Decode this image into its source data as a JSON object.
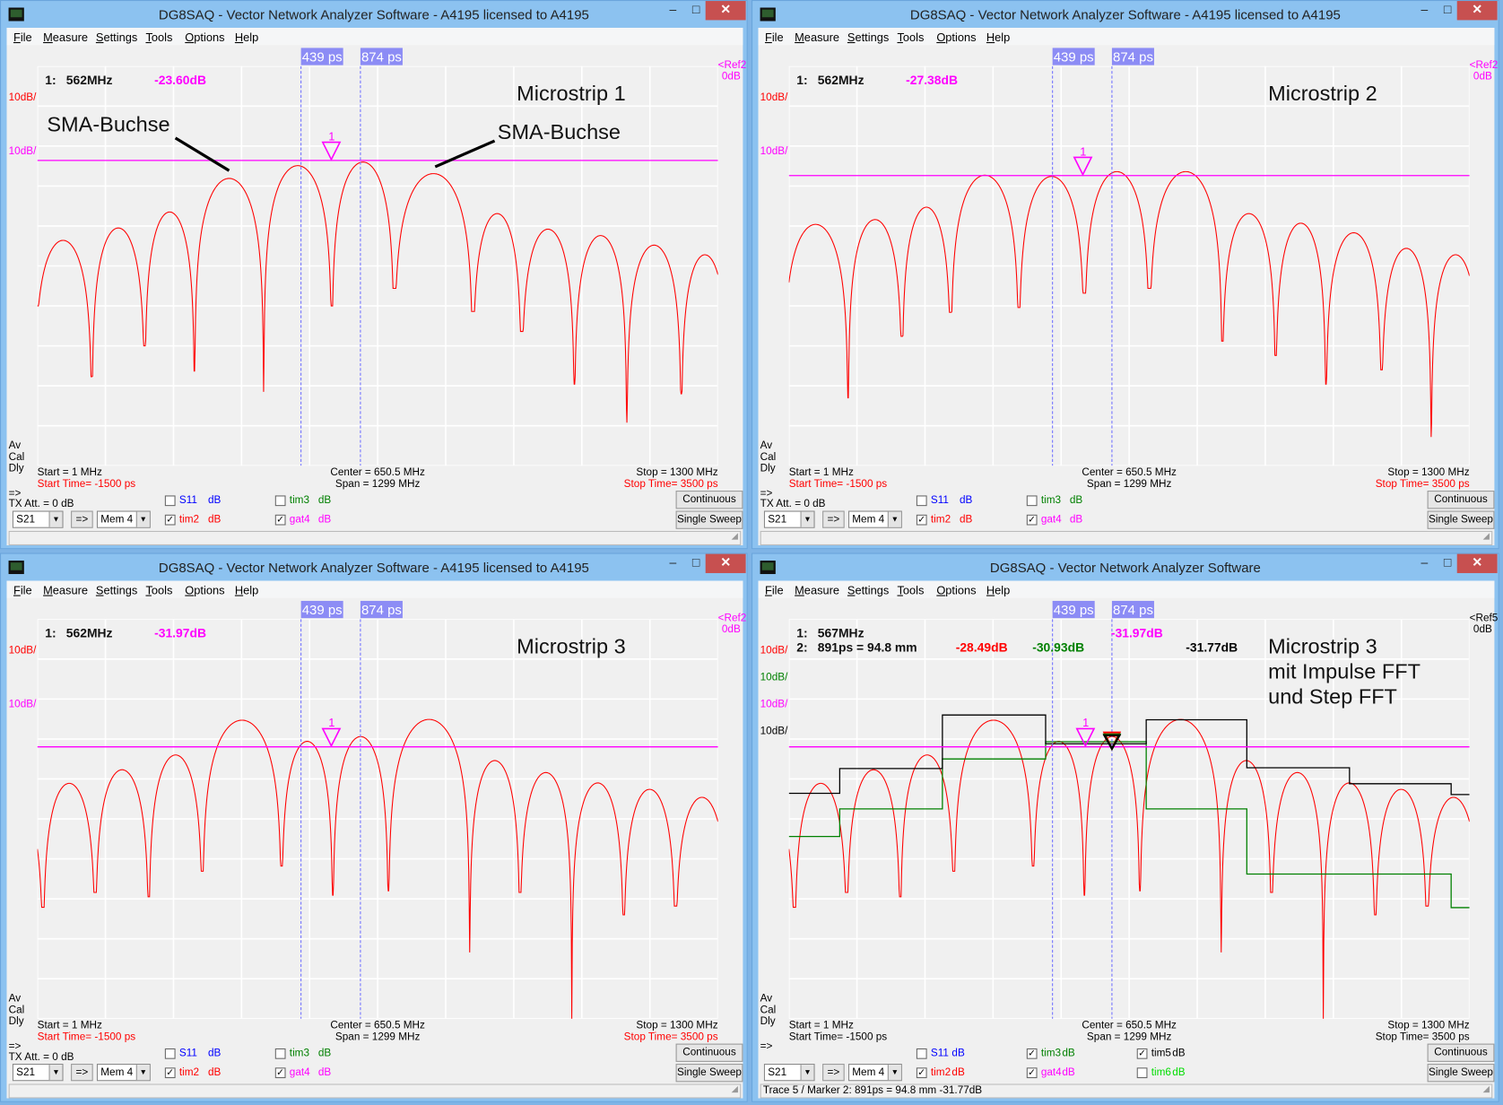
{
  "menu": [
    "File",
    "Measure",
    "Settings",
    "Tools",
    "Options",
    "Help"
  ],
  "window_buttons": {
    "minimize": "–",
    "maximize": "□",
    "close": "✕"
  },
  "panels": [
    {
      "title": "DG8SAQ  -  Vector Network Analyzer Software  - A4195 licensed to A4195",
      "time_markers": [
        "439 ps",
        "874 ps"
      ],
      "ref_label": "<Ref2",
      "ref_value": "0dB",
      "ref_color": "#ff00ff",
      "scale_labels": [
        {
          "text": "10dB/",
          "color": "#ff0000"
        },
        {
          "text": "10dB/",
          "color": "#ff00ff"
        }
      ],
      "marker_rows": [
        {
          "id": "1:",
          "pos": "562MHz",
          "values": [
            {
              "text": "-23.60dB",
              "color": "#ff00ff"
            }
          ]
        }
      ],
      "plot_title": [
        "Microstrip 1"
      ],
      "annotations": [
        "SMA-Buchse",
        "SMA-Buchse"
      ],
      "side_labels": [
        "Av",
        "Cal",
        "Dly"
      ],
      "footer": {
        "start": "Start = 1 MHz",
        "start_time": "Start Time= -1500 ps",
        "center": "Center = 650.5 MHz",
        "span": "Span = 1299 MHz",
        "stop": "Stop = 1300 MHz",
        "stop_time": "Stop Time= 3500 ps",
        "time_color": "#ff0000"
      },
      "arrow": "=>",
      "tx_att": "TX Att.  = 0 dB",
      "s_param": "S21",
      "transfer": "=>",
      "mem": "Mem 4",
      "checks": [
        {
          "label": "S11",
          "unit": "dB",
          "checked": false,
          "color": "#0000ff"
        },
        {
          "label": "tim2",
          "unit": "dB",
          "checked": true,
          "color": "#ff0000"
        },
        {
          "label": "tim3",
          "unit": "dB",
          "checked": false,
          "color": "#008000"
        },
        {
          "label": "gat4",
          "unit": "dB",
          "checked": true,
          "color": "#ff00ff"
        }
      ],
      "buttons": [
        "Continuous",
        "Single Sweep"
      ],
      "status": "",
      "trace": {
        "nulls_mhz": [
          -5,
          105,
          206,
          301,
          433,
          563,
          682,
          832,
          925,
          1026,
          1126,
          1230,
          1320
        ],
        "null_db": [
          -60,
          -77.7,
          -70,
          -76.3,
          -81.5,
          -60,
          -55.6,
          -61.4,
          -66.4,
          -79.6,
          -89.2,
          -82,
          -60
        ],
        "peak_db": [
          -43.6,
          -40.5,
          -36.5,
          -28.1,
          -24.9,
          -24.0,
          -26.9,
          -36.9,
          -40.8,
          -42.4,
          -44.8,
          -47.2
        ],
        "marker_level_db": -23.6,
        "marker1_mhz": 562
      }
    },
    {
      "title": "DG8SAQ  -  Vector Network Analyzer Software  - A4195 licensed to A4195",
      "time_markers": [
        "439 ps",
        "874 ps"
      ],
      "ref_label": "<Ref2",
      "ref_value": "0dB",
      "ref_color": "#ff00ff",
      "scale_labels": [
        {
          "text": "10dB/",
          "color": "#ff0000"
        },
        {
          "text": "10dB/",
          "color": "#ff00ff"
        }
      ],
      "marker_rows": [
        {
          "id": "1:",
          "pos": "562MHz",
          "values": [
            {
              "text": "-27.38dB",
              "color": "#ff00ff"
            }
          ]
        }
      ],
      "plot_title": [
        "Microstrip 2"
      ],
      "annotations": [],
      "side_labels": [
        "Av",
        "Cal",
        "Dly"
      ],
      "footer": {
        "start": "Start = 1 MHz",
        "start_time": "Start Time= -1500 ps",
        "center": "Center = 650.5 MHz",
        "span": "Span = 1299 MHz",
        "stop": "Stop = 1300 MHz",
        "stop_time": "Stop Time= 3500 ps",
        "time_color": "#ff0000"
      },
      "arrow": "=>",
      "tx_att": "TX Att.  = 0 dB",
      "s_param": "S21",
      "transfer": "=>",
      "mem": "Mem 4",
      "checks": [
        {
          "label": "S11",
          "unit": "dB",
          "checked": false,
          "color": "#0000ff"
        },
        {
          "label": "tim2",
          "unit": "dB",
          "checked": true,
          "color": "#ff0000"
        },
        {
          "label": "tim3",
          "unit": "dB",
          "checked": false,
          "color": "#008000"
        },
        {
          "label": "gat4",
          "unit": "dB",
          "checked": true,
          "color": "#ff00ff"
        }
      ],
      "buttons": [
        "Continuous",
        "Single Sweep"
      ],
      "status": "",
      "trace": {
        "nulls_mhz": [
          -10,
          114,
          217,
          310,
          440,
          565,
          689,
          828,
          930,
          1026,
          1132,
          1227,
          1320
        ],
        "null_db": [
          -60,
          -83,
          -67.6,
          -61.6,
          -60.4,
          -56.8,
          -55.6,
          -68.8,
          -72.4,
          -79.6,
          -76,
          -92.8,
          -60
        ],
        "peak_db": [
          -39.6,
          -38.4,
          -35.3,
          -27.3,
          -27.6,
          -26.4,
          -26.4,
          -36.9,
          -39.3,
          -41.7,
          -45.6,
          -47.2
        ],
        "marker_level_db": -27.38,
        "marker1_mhz": 562
      }
    },
    {
      "title": "DG8SAQ  -  Vector Network Analyzer Software  - A4195 licensed to A4195",
      "time_markers": [
        "439 ps",
        "874 ps"
      ],
      "ref_label": "<Ref2",
      "ref_value": "0dB",
      "ref_color": "#ff00ff",
      "scale_labels": [
        {
          "text": "10dB/",
          "color": "#ff0000"
        },
        {
          "text": "10dB/",
          "color": "#ff00ff"
        }
      ],
      "marker_rows": [
        {
          "id": "1:",
          "pos": "562MHz",
          "values": [
            {
              "text": "-31.97dB",
              "color": "#ff00ff"
            }
          ]
        }
      ],
      "plot_title": [
        "Microstrip 3"
      ],
      "annotations": [],
      "side_labels": [
        "Av",
        "Cal",
        "Dly"
      ],
      "footer": {
        "start": "Start = 1 MHz",
        "start_time": "Start Time= -1500 ps",
        "center": "Center = 650.5 MHz",
        "span": "Span = 1299 MHz",
        "stop": "Stop = 1300 MHz",
        "stop_time": "Stop Time= 3500 ps",
        "time_color": "#ff0000"
      },
      "arrow": "=>",
      "tx_att": "TX Att.  = 0 dB",
      "s_param": "S21",
      "transfer": "=>",
      "mem": "Mem 4",
      "checks": [
        {
          "label": "S11",
          "unit": "dB",
          "checked": false,
          "color": "#0000ff"
        },
        {
          "label": "tim2",
          "unit": "dB",
          "checked": true,
          "color": "#ff0000"
        },
        {
          "label": "tim3",
          "unit": "dB",
          "checked": false,
          "color": "#008000"
        },
        {
          "label": "gat4",
          "unit": "dB",
          "checked": true,
          "color": "#ff00ff"
        }
      ],
      "buttons": [
        "Continuous",
        "Single Sweep"
      ],
      "status": "",
      "trace": {
        "nulls_mhz": [
          -90,
          11.9,
          111.6,
          213.7,
          316,
          467,
          565,
          671,
          826,
          922,
          1021,
          1120,
          1219,
          1320
        ],
        "null_db": [
          -60,
          -72.1,
          -68.4,
          -69.5,
          -63.1,
          -61.8,
          -69.1,
          -68,
          -83.4,
          -68.4,
          -100,
          -74,
          -71.8,
          -60
        ],
        "peak_db": [
          -45,
          -41.1,
          -37.7,
          -34,
          -25.3,
          -30.6,
          -29.4,
          -25.1,
          -35.4,
          -38.4,
          -41,
          -42.6,
          -44.6
        ],
        "marker_level_db": -31.97,
        "marker1_mhz": 562
      }
    },
    {
      "title": "DG8SAQ  -  Vector Network Analyzer Software",
      "time_markers": [
        "439 ps",
        "874 ps"
      ],
      "ref_label": "<Ref5",
      "ref_value": "0dB",
      "ref_color": "#000000",
      "scale_labels": [
        {
          "text": "10dB/",
          "color": "#ff0000"
        },
        {
          "text": "10dB/",
          "color": "#008000"
        },
        {
          "text": "10dB/",
          "color": "#ff00ff"
        },
        {
          "text": "10dB/",
          "color": "#000000"
        }
      ],
      "marker_rows": [
        {
          "id": "1:",
          "pos": "567MHz",
          "values": [
            {
              "text": "-31.97dB",
              "color": "#ff00ff"
            }
          ]
        },
        {
          "id": "2:",
          "pos": "891ps = 94.8 mm",
          "values": [
            {
              "text": "-28.49dB",
              "color": "#ff0000"
            },
            {
              "text": "-30.93dB",
              "color": "#008000"
            },
            {
              "text": "-31.77dB",
              "color": "#000000"
            }
          ]
        }
      ],
      "plot_title": [
        "Microstrip 3",
        "mit Impulse FFT",
        "und Step FFT"
      ],
      "annotations": [],
      "side_labels": [
        "Av",
        "Cal",
        "Dly"
      ],
      "footer": {
        "start": "Start = 1 MHz",
        "start_time": "Start Time= -1500 ps",
        "center": "Center = 650.5 MHz",
        "span": "Span = 1299 MHz",
        "stop": "Stop = 1300 MHz",
        "stop_time": "Stop Time= 3500 ps",
        "time_color": "#000000"
      },
      "arrow": "=>",
      "tx_att": "",
      "s_param": "S21",
      "transfer": "=>",
      "mem": "Mem 4",
      "checks": [
        {
          "label": "S11",
          "unit": "dB",
          "checked": false,
          "color": "#0000ff"
        },
        {
          "label": "tim2",
          "unit": "dB",
          "checked": true,
          "color": "#ff0000"
        },
        {
          "label": "tim3",
          "unit": "dB",
          "checked": true,
          "color": "#008000"
        },
        {
          "label": "gat4",
          "unit": "dB",
          "checked": true,
          "color": "#ff00ff"
        },
        {
          "label": "tim5",
          "unit": "dB",
          "checked": true,
          "color": "#000000"
        },
        {
          "label": "tim6",
          "unit": "dB",
          "checked": false,
          "color": "#00dd00"
        }
      ],
      "buttons": [
        "Continuous",
        "Single Sweep"
      ],
      "status": "Trace 5 / Marker 2:  891ps = 94.8 mm      -31.77dB",
      "trace": {
        "nulls_mhz": [
          -90,
          11.9,
          111.6,
          213.7,
          316,
          467,
          565,
          671,
          826,
          922,
          1021,
          1120,
          1219,
          1320
        ],
        "null_db": [
          -60,
          -72.1,
          -68.4,
          -69.5,
          -63.1,
          -61.8,
          -69.1,
          -68,
          -83.4,
          -68.4,
          -100,
          -74,
          -71.8,
          -60
        ],
        "peak_db": [
          -45,
          -41.1,
          -37.7,
          -34,
          -25.3,
          -30.6,
          -29.4,
          -25.1,
          -35.4,
          -38.4,
          -41,
          -42.6,
          -44.6
        ],
        "marker_level_db": -31.97,
        "marker1_mhz": 567,
        "step_edges_mhz": [
          1,
          98,
          294,
          491,
          683,
          875,
          1071,
          1265,
          1300
        ],
        "step_black_db": [
          -43.6,
          -37.4,
          -24,
          -31.2,
          -25.2,
          -37.2,
          -41.2,
          -43.9
        ],
        "step_green_db": [
          -54.4,
          -47.5,
          -35,
          -30.7,
          -47.5,
          -63.8,
          -63.8,
          -72.2
        ]
      }
    }
  ]
}
